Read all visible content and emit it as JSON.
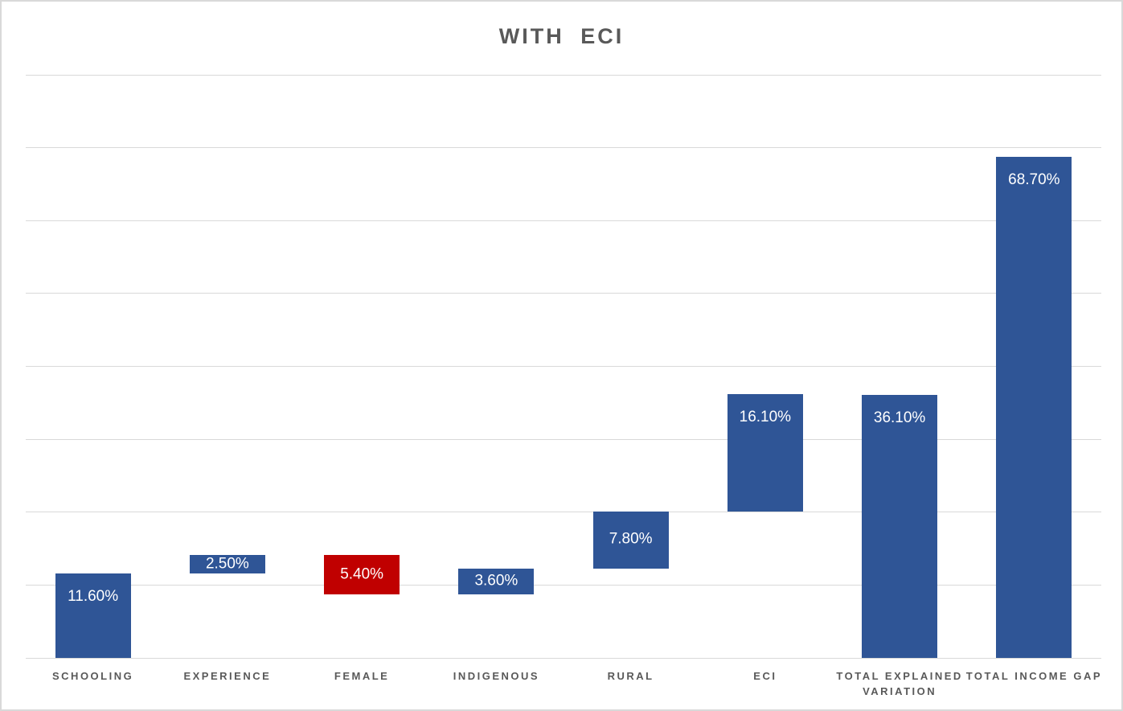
{
  "title": "WITH ECI",
  "colors": {
    "bar_positive": "#2f5596",
    "bar_negative": "#c00000",
    "gridline": "#d9d9d9",
    "frame_border": "#d9d9d9",
    "title_text": "#595959",
    "category_text": "#595959",
    "data_label_text": "#ffffff",
    "background": "#ffffff"
  },
  "chart_data": {
    "type": "bar",
    "subtype": "waterfall",
    "title": "WITH ECI",
    "xlabel": "",
    "ylabel": "",
    "ylim": [
      0,
      80
    ],
    "gridline_step": 10,
    "grid": true,
    "legend": false,
    "y_axis_tick_labels_visible": false,
    "categories": [
      "SCHOOLING",
      "EXPERIENCE",
      "FEMALE",
      "INDIGENOUS",
      "RURAL",
      "ECI",
      "TOTAL EXPLAINED VARIATION",
      "TOTAL INCOME GAP"
    ],
    "bars": [
      {
        "category": "SCHOOLING",
        "value": 11.6,
        "display": "11.60%",
        "kind": "increase"
      },
      {
        "category": "EXPERIENCE",
        "value": 2.5,
        "display": "2.50%",
        "kind": "increase"
      },
      {
        "category": "FEMALE",
        "value": 5.4,
        "display": "5.40%",
        "kind": "decrease"
      },
      {
        "category": "INDIGENOUS",
        "value": 3.6,
        "display": "3.60%",
        "kind": "increase"
      },
      {
        "category": "RURAL",
        "value": 7.8,
        "display": "7.80%",
        "kind": "increase"
      },
      {
        "category": "ECI",
        "value": 16.1,
        "display": "16.10%",
        "kind": "increase"
      },
      {
        "category": "TOTAL EXPLAINED VARIATION",
        "value": 36.1,
        "display": "36.10%",
        "kind": "total"
      },
      {
        "category": "TOTAL INCOME GAP",
        "value": 68.7,
        "display": "68.70%",
        "kind": "total"
      }
    ]
  }
}
